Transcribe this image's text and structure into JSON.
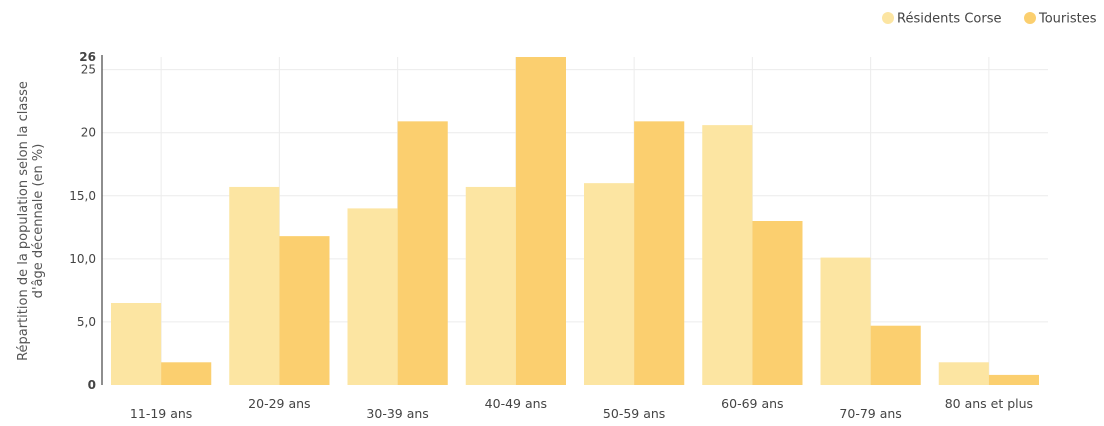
{
  "chart_data": {
    "type": "bar",
    "title": "",
    "xlabel": "",
    "ylabel": "Répartition de la population selon la classe d'âge décennale (en %)",
    "ylabel_lines": [
      "Répartition de la population selon la classe",
      "d'âge décennale (en %)"
    ],
    "ylim": [
      0,
      26
    ],
    "yticks": [
      {
        "value": 0,
        "label": "0"
      },
      {
        "value": 5,
        "label": "5,0"
      },
      {
        "value": 10,
        "label": "10,0"
      },
      {
        "value": 15,
        "label": "15,0"
      },
      {
        "value": 20,
        "label": "20"
      },
      {
        "value": 25,
        "label": "25"
      },
      {
        "value": 26,
        "label": "26"
      }
    ],
    "categories": [
      "11-19 ans",
      "20-29 ans",
      "30-39 ans",
      "40-49 ans",
      "50-59 ans",
      "60-69 ans",
      "70-79 ans",
      "80 ans et plus"
    ],
    "series": [
      {
        "name": "Résidents Corse",
        "color": "#fce5a2",
        "values": [
          6.5,
          15.7,
          14.0,
          15.7,
          16.0,
          20.6,
          10.1,
          1.8
        ]
      },
      {
        "name": "Touristes",
        "color": "#fbcf6f",
        "values": [
          1.8,
          11.8,
          20.9,
          26.0,
          20.9,
          13.0,
          4.7,
          0.8
        ]
      }
    ],
    "grid": true,
    "legend_position": "top-right"
  }
}
